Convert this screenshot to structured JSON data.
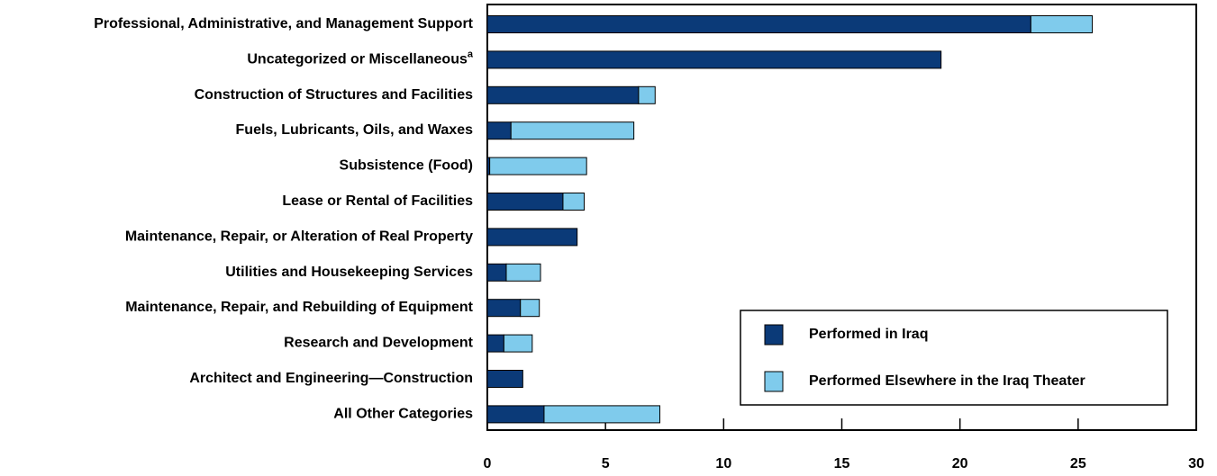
{
  "chart_data": {
    "type": "stacked_barh",
    "categories": [
      "Professional, Administrative, and Management Support",
      "Uncategorized or Miscellaneous",
      "Construction of Structures and Facilities",
      "Fuels, Lubricants, Oils, and Waxes",
      "Subsistence (Food)",
      "Lease or Rental of Facilities",
      "Maintenance, Repair, or Alteration of Real Property",
      "Utilities and Housekeeping Services",
      "Maintenance, Repair, and Rebuilding of Equipment",
      "Research and Development",
      "Architect and Engineering—Construction",
      "All Other Categories"
    ],
    "category_marks": [
      null,
      "a",
      null,
      null,
      null,
      null,
      null,
      null,
      null,
      null,
      null,
      null
    ],
    "series": [
      {
        "name": "Performed in Iraq",
        "color": "#0b3a78",
        "values": [
          23.0,
          19.2,
          6.4,
          1.0,
          0.1,
          3.2,
          3.8,
          0.8,
          1.4,
          0.7,
          1.5,
          2.4
        ]
      },
      {
        "name": "Performed Elsewhere in the Iraq Theater",
        "color": "#7fcbec",
        "values": [
          2.6,
          0,
          0.7,
          5.2,
          4.1,
          0.9,
          0,
          1.45,
          0.8,
          1.2,
          0,
          4.9
        ]
      }
    ],
    "xlim": [
      0,
      30
    ],
    "xticks": [
      0,
      5,
      10,
      15,
      20,
      25,
      30
    ],
    "legend": "lower right"
  }
}
